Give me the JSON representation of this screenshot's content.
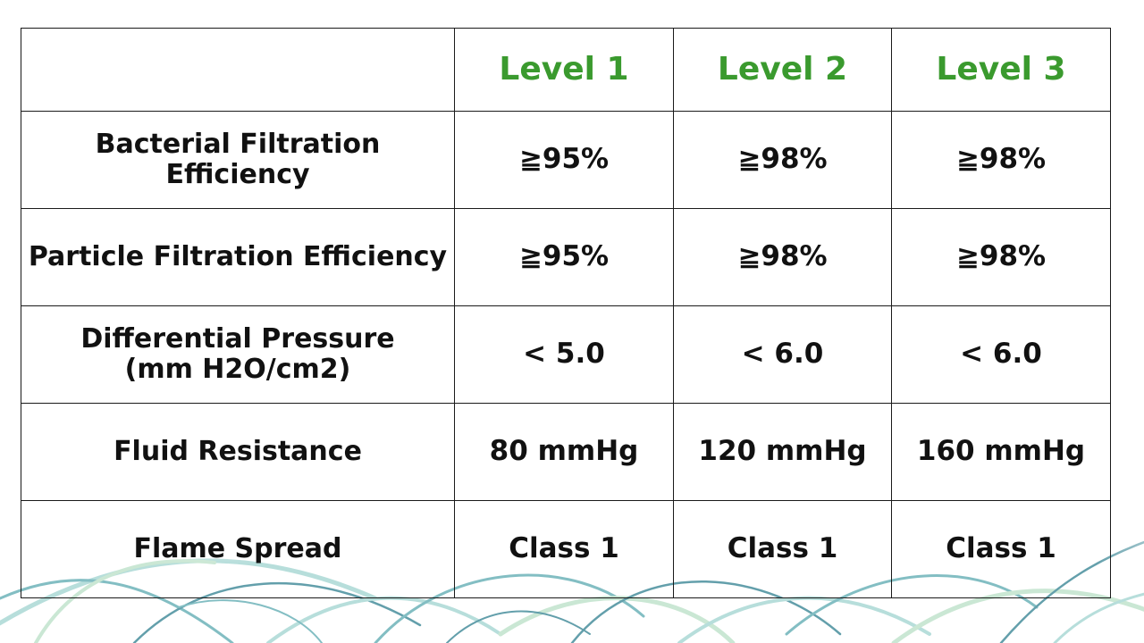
{
  "table": {
    "header": {
      "corner": "",
      "levels": [
        "Level 1",
        "Level 2",
        "Level 3"
      ]
    },
    "rows": [
      {
        "label_line1": "Bacterial Filtration Efficiency",
        "label_line2": "",
        "values": [
          "≧95%",
          "≧98%",
          "≧98%"
        ]
      },
      {
        "label_line1": "Particle Filtration Efficiency",
        "label_line2": "",
        "values": [
          "≧95%",
          "≧98%",
          "≧98%"
        ]
      },
      {
        "label_line1": "Differential Pressure",
        "label_line2": "(mm H2O/cm2)",
        "values": [
          "< 5.0",
          "< 6.0",
          "< 6.0"
        ]
      },
      {
        "label_line1": "Fluid Resistance",
        "label_line2": "",
        "values": [
          "80 mmHg",
          "120 mmHg",
          "160 mmHg"
        ]
      },
      {
        "label_line1": "Flame Spread",
        "label_line2": "",
        "values": [
          "Class 1",
          "Class 1",
          "Class 1"
        ]
      }
    ]
  },
  "theme": {
    "level_color": "#3a9a2e",
    "text_color": "#111111",
    "border_color": "#1a1a1a",
    "decor_colors": [
      "#9fd3cf",
      "#5aa9b0",
      "#2f7f8f",
      "#b9e0c6"
    ]
  }
}
